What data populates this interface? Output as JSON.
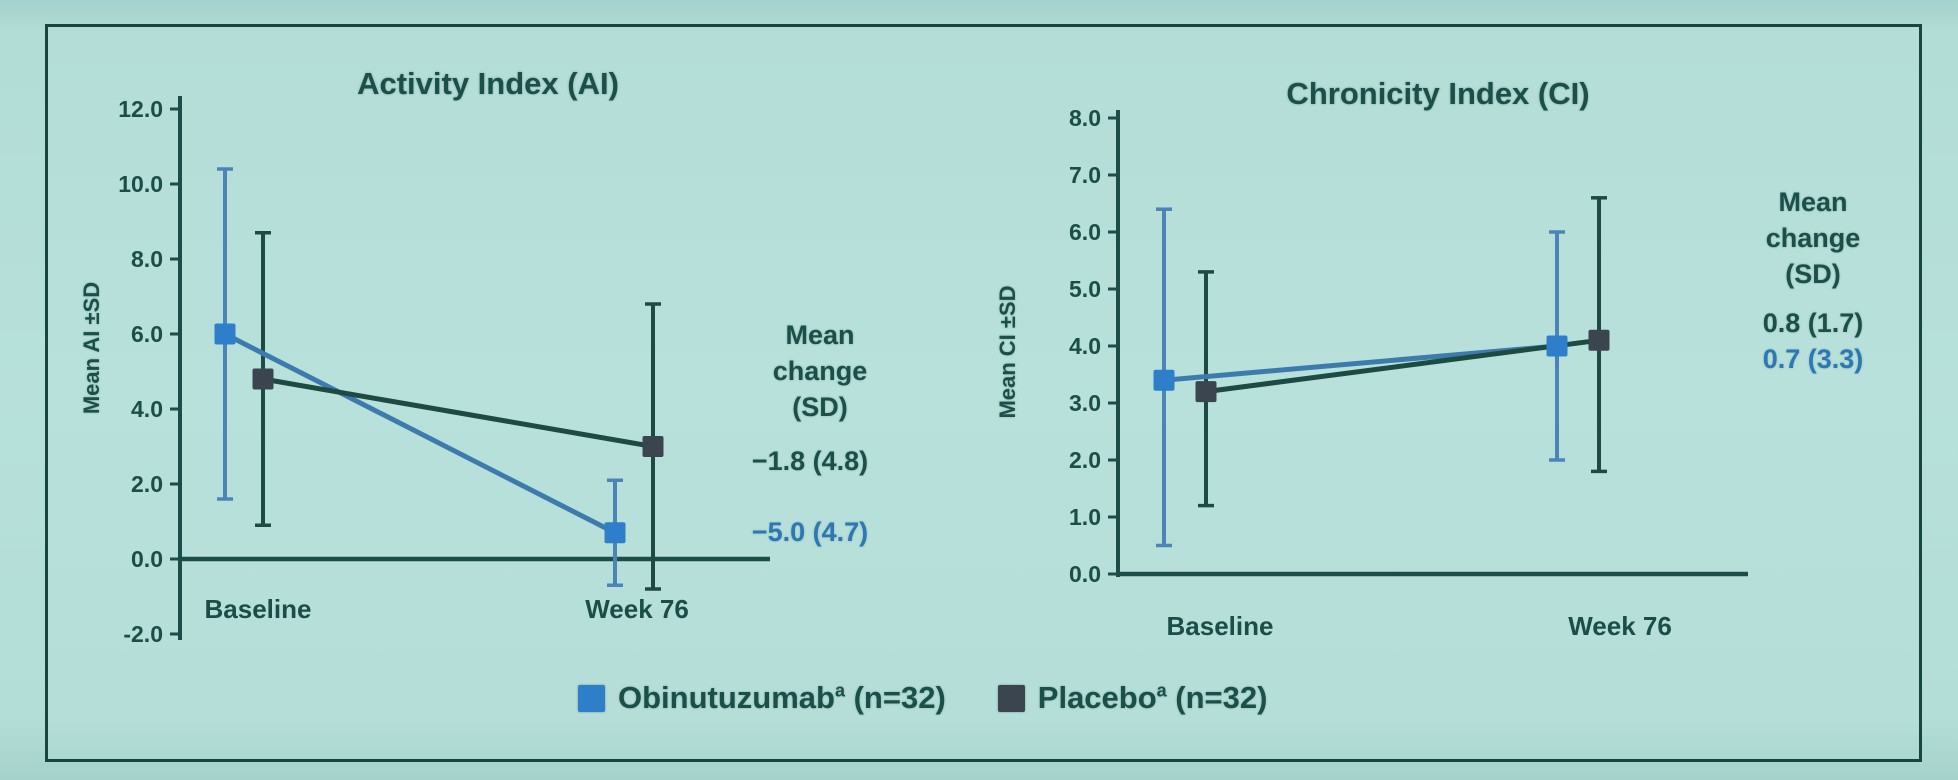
{
  "figure": {
    "colors": {
      "background": "#b7e0da",
      "frame_border": "#17463e",
      "ink": "#1a4e46",
      "obinutuzumab": "#2e7ec9",
      "obinutuzumab_line": "#3e7bad",
      "obinutuzumab_err": "#4a85b5",
      "placebo_marker": "#3a454f",
      "placebo_line": "#1d4a43"
    },
    "legend": {
      "items": [
        {
          "name": "Obinutuzumab",
          "sup": "a",
          "rest": " (n=32)",
          "color": "#2e7ec9"
        },
        {
          "name": "Placebo",
          "sup": "a",
          "rest": " (n=32)",
          "color": "#3a454f"
        }
      ]
    }
  },
  "chart_data": [
    {
      "type": "line",
      "title": "Activity Index (AI)",
      "ylabel": "Mean AI ±SD",
      "ylim": [
        -2.0,
        12.0
      ],
      "ytick_step": 2.0,
      "grid": false,
      "categories": [
        "Baseline",
        "Week 76"
      ],
      "series": [
        {
          "name": "Obinutuzumab",
          "values": [
            6.0,
            0.7
          ],
          "err_low": [
            1.6,
            -0.7
          ],
          "err_high": [
            10.4,
            2.1
          ]
        },
        {
          "name": "Placebo",
          "values": [
            4.8,
            3.0
          ],
          "err_low": [
            0.9,
            -0.8
          ],
          "err_high": [
            8.7,
            6.8
          ]
        }
      ],
      "annotation": {
        "heading": [
          "Mean",
          "change",
          "(SD)"
        ],
        "placebo_value": "−1.8 (4.8)",
        "obinutuzumab_value": "−5.0 (4.7)"
      }
    },
    {
      "type": "line",
      "title": "Chronicity Index (CI)",
      "ylabel": "Mean CI ±SD",
      "ylim": [
        0.0,
        8.0
      ],
      "ytick_step": 1.0,
      "grid": false,
      "categories": [
        "Baseline",
        "Week 76"
      ],
      "series": [
        {
          "name": "Obinutuzumab",
          "values": [
            3.4,
            4.0
          ],
          "err_low": [
            0.5,
            2.0
          ],
          "err_high": [
            6.4,
            6.0
          ]
        },
        {
          "name": "Placebo",
          "values": [
            3.2,
            4.1
          ],
          "err_low": [
            1.2,
            1.8
          ],
          "err_high": [
            5.3,
            6.6
          ]
        }
      ],
      "annotation": {
        "heading": [
          "Mean",
          "change",
          "(SD)"
        ],
        "placebo_value": "0.8 (1.7)",
        "obinutuzumab_value": "0.7 (3.3)"
      }
    }
  ]
}
